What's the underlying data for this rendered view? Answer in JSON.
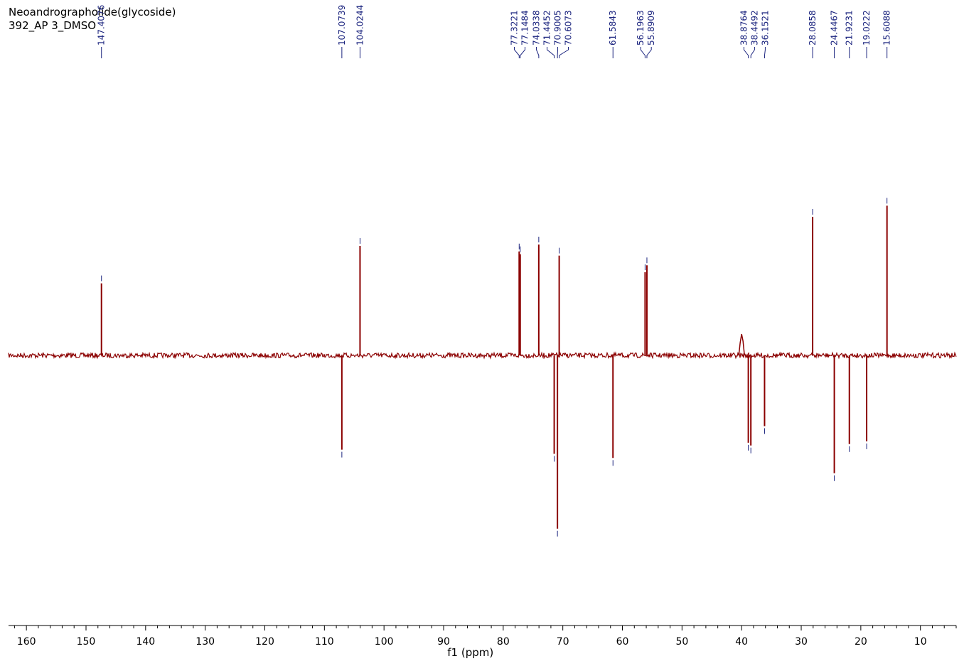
{
  "title": {
    "line1": "Neoandrographolide(glycoside)",
    "line2": "392_AP 3_DMSO"
  },
  "colors": {
    "spectrum": "#8b0000",
    "peak_labels": "#1a237e",
    "axis": "#000000"
  },
  "chart_data": {
    "type": "line",
    "title": "Neoandrographolide(glycoside)",
    "subtitle": "392_AP 3_DMSO",
    "xlabel": "f1 (ppm)",
    "ylabel": "",
    "x_reversed": true,
    "xlim": [
      163,
      4
    ],
    "ylim": [
      -1.45,
      1.0
    ],
    "x_ticks": [
      160,
      150,
      140,
      130,
      120,
      110,
      100,
      90,
      80,
      70,
      60,
      50,
      40,
      30,
      20,
      10
    ],
    "grid": false,
    "peaks": [
      {
        "ppm": 147.4076,
        "label": "147.4076",
        "intensity": 0.52
      },
      {
        "ppm": 107.0739,
        "label": "107.0739",
        "intensity": -0.68
      },
      {
        "ppm": 104.0244,
        "label": "104.0244",
        "intensity": 0.79
      },
      {
        "ppm": 77.3221,
        "label": "77.3221",
        "intensity": 0.75
      },
      {
        "ppm": 77.1484,
        "label": "77.1484",
        "intensity": 0.73
      },
      {
        "ppm": 74.0338,
        "label": "74.0338",
        "intensity": 0.8
      },
      {
        "ppm": 71.4452,
        "label": "71.4452",
        "intensity": -0.71
      },
      {
        "ppm": 70.9005,
        "label": "70.9005",
        "intensity": -1.25
      },
      {
        "ppm": 70.6073,
        "label": "70.6073",
        "intensity": 0.72
      },
      {
        "ppm": 61.5843,
        "label": "61.5843",
        "intensity": -0.74
      },
      {
        "ppm": 56.1963,
        "label": "56.1963",
        "intensity": 0.6
      },
      {
        "ppm": 55.8909,
        "label": "55.8909",
        "intensity": 0.65
      },
      {
        "ppm": 38.8764,
        "label": "38.8764",
        "intensity": -0.63
      },
      {
        "ppm": 38.4492,
        "label": "38.4492",
        "intensity": -0.65
      },
      {
        "ppm": 36.1521,
        "label": "36.1521",
        "intensity": -0.51
      },
      {
        "ppm": 28.0858,
        "label": "28.0858",
        "intensity": 1.0
      },
      {
        "ppm": 24.4467,
        "label": "24.4467",
        "intensity": -0.85
      },
      {
        "ppm": 21.9231,
        "label": "21.9231",
        "intensity": -0.64
      },
      {
        "ppm": 19.0222,
        "label": "19.0222",
        "intensity": -0.62
      },
      {
        "ppm": 15.6088,
        "label": "15.6088",
        "intensity": 1.08
      }
    ]
  }
}
